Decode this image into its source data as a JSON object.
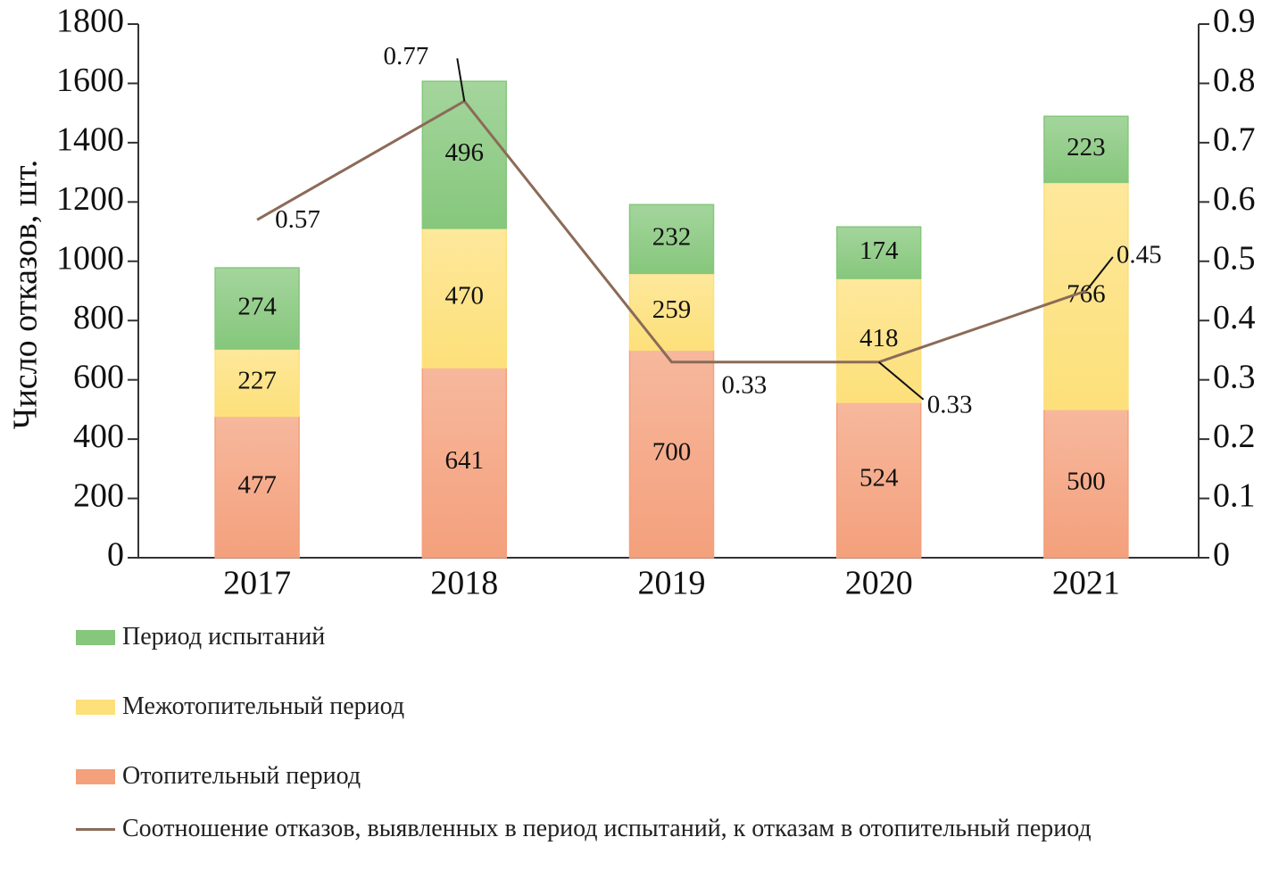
{
  "chart_data": {
    "type": "bar",
    "stacked": true,
    "y_label": "Число отказов, шт.",
    "categories": [
      "2017",
      "2018",
      "2019",
      "2020",
      "2021"
    ],
    "series": [
      {
        "name": "Отопительный период",
        "color": "#f4a07c",
        "values": [
          477,
          641,
          700,
          524,
          500
        ]
      },
      {
        "name": "Межотопительный период",
        "color": "#fde07a",
        "values": [
          227,
          470,
          259,
          418,
          766
        ]
      },
      {
        "name": "Период испытаний",
        "color": "#86c77c",
        "values": [
          274,
          496,
          232,
          174,
          223
        ]
      },
      {
        "name": "Соотношение отказов, выявленных в период испытаний, к отказам в отопительный период",
        "color": "#8b6b58",
        "type": "line",
        "axis": "y2",
        "values": [
          0.57,
          0.77,
          0.33,
          0.33,
          0.45
        ]
      }
    ],
    "ylim": [
      0,
      1800
    ],
    "yticks": [
      0,
      200,
      400,
      600,
      800,
      1000,
      1200,
      1400,
      1600,
      1800
    ],
    "y2lim": [
      0,
      0.9
    ],
    "y2ticks": [
      0,
      0.1,
      0.2,
      0.3,
      0.4,
      0.5,
      0.6,
      0.7,
      0.8,
      0.9
    ]
  }
}
